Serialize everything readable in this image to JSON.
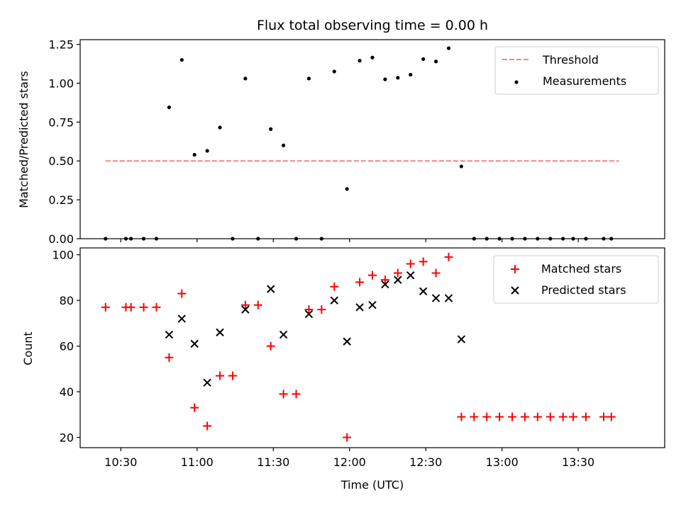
{
  "chart_data": [
    {
      "type": "scatter",
      "title": "Flux total observing time = 0.00 h",
      "xlabel": "",
      "ylabel": "Matched/Predicted stars",
      "xlim": [
        "10:14",
        "14:04"
      ],
      "ylim": [
        0,
        1.28
      ],
      "yticks": [
        0.0,
        0.25,
        0.5,
        0.75,
        1.0,
        1.25
      ],
      "ytick_labels": [
        "0.00",
        "0.25",
        "0.50",
        "0.75",
        "1.00",
        "1.25"
      ],
      "xticks": [
        "10:30",
        "11:00",
        "11:30",
        "12:00",
        "12:30",
        "13:00",
        "13:30"
      ],
      "legend_position": "upper right",
      "series": [
        {
          "name": "Threshold",
          "kind": "line",
          "style": "dashed",
          "color": "#ff7f7f",
          "points": [
            {
              "x": "10:24",
              "y": 0.5
            },
            {
              "x": "13:46",
              "y": 0.5
            }
          ]
        },
        {
          "name": "Measurements",
          "kind": "scatter",
          "marker": "dot",
          "color": "#000000",
          "points": [
            {
              "x": "10:24",
              "y": 0
            },
            {
              "x": "10:32",
              "y": 0
            },
            {
              "x": "10:34",
              "y": 0
            },
            {
              "x": "10:39",
              "y": 0
            },
            {
              "x": "10:44",
              "y": 0
            },
            {
              "x": "10:49",
              "y": 0.845
            },
            {
              "x": "10:54",
              "y": 1.15
            },
            {
              "x": "10:59",
              "y": 0.54
            },
            {
              "x": "11:04",
              "y": 0.565
            },
            {
              "x": "11:09",
              "y": 0.715
            },
            {
              "x": "11:14",
              "y": 0
            },
            {
              "x": "11:19",
              "y": 1.03
            },
            {
              "x": "11:24",
              "y": 0
            },
            {
              "x": "11:29",
              "y": 0.705
            },
            {
              "x": "11:34",
              "y": 0.6
            },
            {
              "x": "11:39",
              "y": 0
            },
            {
              "x": "11:44",
              "y": 1.03
            },
            {
              "x": "11:49",
              "y": 0
            },
            {
              "x": "11:54",
              "y": 1.075
            },
            {
              "x": "11:59",
              "y": 0.32
            },
            {
              "x": "12:04",
              "y": 1.145
            },
            {
              "x": "12:09",
              "y": 1.165
            },
            {
              "x": "12:14",
              "y": 1.025
            },
            {
              "x": "12:19",
              "y": 1.035
            },
            {
              "x": "12:24",
              "y": 1.055
            },
            {
              "x": "12:29",
              "y": 1.155
            },
            {
              "x": "12:34",
              "y": 1.14
            },
            {
              "x": "12:39",
              "y": 1.225
            },
            {
              "x": "12:44",
              "y": 0.465
            },
            {
              "x": "12:49",
              "y": 0
            },
            {
              "x": "12:54",
              "y": 0
            },
            {
              "x": "12:59",
              "y": 0
            },
            {
              "x": "13:04",
              "y": 0
            },
            {
              "x": "13:09",
              "y": 0
            },
            {
              "x": "13:14",
              "y": 0
            },
            {
              "x": "13:19",
              "y": 0
            },
            {
              "x": "13:24",
              "y": 0
            },
            {
              "x": "13:28",
              "y": 0
            },
            {
              "x": "13:33",
              "y": 0
            },
            {
              "x": "13:40",
              "y": 0
            },
            {
              "x": "13:43",
              "y": 0
            }
          ]
        }
      ]
    },
    {
      "type": "scatter",
      "title": "",
      "xlabel": "Time (UTC)",
      "ylabel": "Count",
      "xlim": [
        "10:14",
        "14:04"
      ],
      "ylim": [
        15.5,
        103
      ],
      "yticks": [
        20,
        40,
        60,
        80,
        100
      ],
      "ytick_labels": [
        "20",
        "40",
        "60",
        "80",
        "100"
      ],
      "xticks": [
        "10:30",
        "11:00",
        "11:30",
        "12:00",
        "12:30",
        "13:00",
        "13:30"
      ],
      "legend_position": "upper right",
      "series": [
        {
          "name": "Matched stars",
          "kind": "scatter",
          "marker": "plus",
          "color": "#ff0000",
          "points": [
            {
              "x": "10:24",
              "y": 77
            },
            {
              "x": "10:32",
              "y": 77
            },
            {
              "x": "10:34",
              "y": 77
            },
            {
              "x": "10:39",
              "y": 77
            },
            {
              "x": "10:44",
              "y": 77
            },
            {
              "x": "10:49",
              "y": 55
            },
            {
              "x": "10:54",
              "y": 83
            },
            {
              "x": "10:59",
              "y": 33
            },
            {
              "x": "11:04",
              "y": 25
            },
            {
              "x": "11:09",
              "y": 47
            },
            {
              "x": "11:14",
              "y": 47
            },
            {
              "x": "11:19",
              "y": 78
            },
            {
              "x": "11:24",
              "y": 78
            },
            {
              "x": "11:29",
              "y": 60
            },
            {
              "x": "11:34",
              "y": 39
            },
            {
              "x": "11:39",
              "y": 39
            },
            {
              "x": "11:44",
              "y": 76
            },
            {
              "x": "11:49",
              "y": 76
            },
            {
              "x": "11:54",
              "y": 86
            },
            {
              "x": "11:59",
              "y": 20
            },
            {
              "x": "12:04",
              "y": 88
            },
            {
              "x": "12:09",
              "y": 91
            },
            {
              "x": "12:14",
              "y": 89
            },
            {
              "x": "12:19",
              "y": 92
            },
            {
              "x": "12:24",
              "y": 96
            },
            {
              "x": "12:29",
              "y": 97
            },
            {
              "x": "12:34",
              "y": 92
            },
            {
              "x": "12:39",
              "y": 99
            },
            {
              "x": "12:44",
              "y": 29
            },
            {
              "x": "12:49",
              "y": 29
            },
            {
              "x": "12:54",
              "y": 29
            },
            {
              "x": "12:59",
              "y": 29
            },
            {
              "x": "13:04",
              "y": 29
            },
            {
              "x": "13:09",
              "y": 29
            },
            {
              "x": "13:14",
              "y": 29
            },
            {
              "x": "13:19",
              "y": 29
            },
            {
              "x": "13:24",
              "y": 29
            },
            {
              "x": "13:28",
              "y": 29
            },
            {
              "x": "13:33",
              "y": 29
            },
            {
              "x": "13:40",
              "y": 29
            },
            {
              "x": "13:43",
              "y": 29
            }
          ]
        },
        {
          "name": "Predicted stars",
          "kind": "scatter",
          "marker": "x",
          "color": "#000000",
          "points": [
            {
              "x": "10:49",
              "y": 65
            },
            {
              "x": "10:54",
              "y": 72
            },
            {
              "x": "10:59",
              "y": 61
            },
            {
              "x": "11:04",
              "y": 44
            },
            {
              "x": "11:09",
              "y": 66
            },
            {
              "x": "11:19",
              "y": 76
            },
            {
              "x": "11:29",
              "y": 85
            },
            {
              "x": "11:34",
              "y": 65
            },
            {
              "x": "11:44",
              "y": 74
            },
            {
              "x": "11:54",
              "y": 80
            },
            {
              "x": "11:59",
              "y": 62
            },
            {
              "x": "12:04",
              "y": 77
            },
            {
              "x": "12:09",
              "y": 78
            },
            {
              "x": "12:14",
              "y": 87
            },
            {
              "x": "12:19",
              "y": 89
            },
            {
              "x": "12:24",
              "y": 91
            },
            {
              "x": "12:29",
              "y": 84
            },
            {
              "x": "12:34",
              "y": 81
            },
            {
              "x": "12:39",
              "y": 81
            },
            {
              "x": "12:44",
              "y": 63
            }
          ]
        }
      ]
    }
  ]
}
